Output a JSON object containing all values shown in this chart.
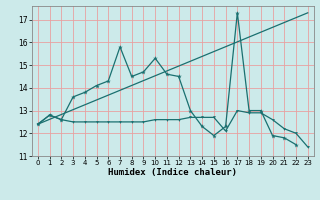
{
  "xlabel": "Humidex (Indice chaleur)",
  "background_color": "#cceaea",
  "grid_color": "#e8a0a0",
  "line_color": "#1a7070",
  "xlim": [
    -0.5,
    23.5
  ],
  "ylim": [
    11,
    17.6
  ],
  "yticks": [
    11,
    12,
    13,
    14,
    15,
    16,
    17
  ],
  "xticks": [
    0,
    1,
    2,
    3,
    4,
    5,
    6,
    7,
    8,
    9,
    10,
    11,
    12,
    13,
    14,
    15,
    16,
    17,
    18,
    19,
    20,
    21,
    22,
    23
  ],
  "line1_x": [
    0,
    1,
    2,
    3,
    4,
    5,
    6,
    7,
    8,
    9,
    10,
    11,
    12,
    13,
    14,
    15,
    16,
    17,
    18,
    19,
    20,
    21,
    22
  ],
  "line1_y": [
    12.4,
    12.8,
    12.6,
    13.6,
    13.8,
    14.1,
    14.3,
    15.8,
    14.5,
    14.7,
    15.3,
    14.6,
    14.5,
    13.0,
    12.3,
    11.9,
    12.3,
    17.3,
    13.0,
    13.0,
    11.9,
    11.8,
    11.5
  ],
  "line2_x": [
    0,
    1,
    2,
    3,
    4,
    5,
    6,
    7,
    8,
    9,
    10,
    11,
    12,
    13,
    14,
    15,
    16,
    17,
    18,
    19,
    20,
    21,
    22,
    23
  ],
  "line2_y": [
    12.4,
    12.8,
    12.6,
    12.5,
    12.5,
    12.5,
    12.5,
    12.5,
    12.5,
    12.5,
    12.6,
    12.6,
    12.6,
    12.7,
    12.7,
    12.7,
    12.1,
    13.0,
    12.9,
    12.9,
    12.6,
    12.2,
    12.0,
    11.4
  ],
  "line3_x": [
    0,
    23
  ],
  "line3_y": [
    12.4,
    17.3
  ]
}
